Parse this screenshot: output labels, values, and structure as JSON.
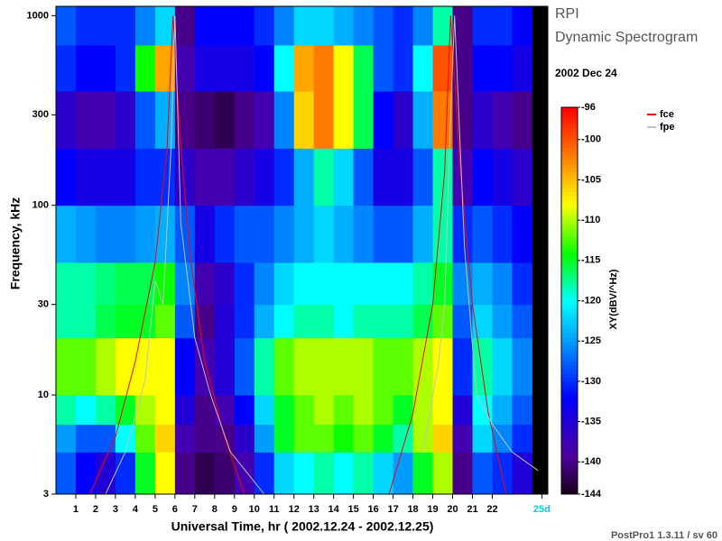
{
  "title": "RPI",
  "subtitle": "Dynamic Spectrogram",
  "date": "2002 Dec 24",
  "footer": "PostPro1 1.3.11 / sv 60",
  "chart_data": {
    "type": "heatmap",
    "xlabel": "Universal Time, hr ( 2002.12.24 - 2002.12.25)",
    "ylabel": "Frequency, kHz",
    "xlim": [
      0,
      24.8
    ],
    "xticks": [
      1,
      2,
      3,
      4,
      5,
      6,
      7,
      8,
      9,
      10,
      11,
      12,
      13,
      14,
      15,
      16,
      17,
      18,
      19,
      20,
      21,
      22,
      {
        "value": 24.5,
        "label": "25d"
      }
    ],
    "ylim": [
      3,
      1120
    ],
    "yticks": [
      3,
      10,
      30,
      100,
      300,
      1000
    ],
    "log_y": true,
    "x_bins": [
      0,
      1,
      2,
      3,
      4,
      5,
      6,
      7,
      8,
      9,
      10,
      11,
      12,
      13,
      14,
      15,
      16,
      17,
      18,
      19,
      20,
      21,
      22,
      23,
      24
    ],
    "y_bins": [
      3,
      5,
      7,
      10,
      20,
      30,
      50,
      100,
      200,
      400,
      700,
      1120
    ],
    "z": [
      [
        -128,
        -132,
        -135,
        -130,
        -115,
        -108,
        -140,
        -142,
        -141,
        -138,
        -130,
        -122,
        -120,
        -118,
        -120,
        -118,
        -122,
        -125,
        -115,
        -110,
        -140,
        -128,
        -130,
        -135
      ],
      [
        -125,
        -128,
        -128,
        -120,
        -112,
        -106,
        -138,
        -140,
        -140,
        -136,
        -125,
        -115,
        -112,
        -112,
        -114,
        -112,
        -115,
        -118,
        -110,
        -106,
        -138,
        -122,
        -126,
        -130
      ],
      [
        -118,
        -120,
        -118,
        -115,
        -110,
        -108,
        -135,
        -140,
        -138,
        -132,
        -122,
        -115,
        -112,
        -110,
        -112,
        -110,
        -112,
        -115,
        -110,
        -108,
        -135,
        -120,
        -124,
        -128
      ],
      [
        -112,
        -112,
        -110,
        -108,
        -108,
        -108,
        -132,
        -138,
        -135,
        -128,
        -118,
        -112,
        -110,
        -110,
        -110,
        -110,
        -112,
        -112,
        -110,
        -108,
        -130,
        -118,
        -122,
        -126
      ],
      [
        -118,
        -118,
        -116,
        -115,
        -115,
        -112,
        -128,
        -140,
        -135,
        -130,
        -124,
        -120,
        -118,
        -118,
        -120,
        -118,
        -118,
        -118,
        -116,
        -112,
        -128,
        -122,
        -125,
        -128
      ],
      [
        -118,
        -118,
        -117,
        -116,
        -116,
        -114,
        -126,
        -138,
        -136,
        -130,
        -126,
        -122,
        -120,
        -120,
        -120,
        -120,
        -120,
        -120,
        -118,
        -115,
        -126,
        -124,
        -126,
        -130
      ],
      [
        -124,
        -125,
        -126,
        -126,
        -125,
        -124,
        -128,
        -134,
        -130,
        -128,
        -128,
        -126,
        -124,
        -122,
        -124,
        -126,
        -128,
        -128,
        -124,
        -118,
        -130,
        -128,
        -130,
        -132
      ],
      [
        -132,
        -134,
        -134,
        -134,
        -130,
        -130,
        -136,
        -138,
        -138,
        -136,
        -134,
        -130,
        -124,
        -118,
        -122,
        -128,
        -134,
        -134,
        -128,
        -118,
        -138,
        -132,
        -134,
        -136
      ],
      [
        -136,
        -138,
        -138,
        -136,
        -128,
        -124,
        -140,
        -141,
        -142,
        -140,
        -138,
        -126,
        -106,
        -102,
        -108,
        -116,
        -132,
        -136,
        -124,
        -102,
        -140,
        -136,
        -138,
        -140
      ],
      [
        -130,
        -132,
        -132,
        -130,
        -114,
        -104,
        -138,
        -134,
        -134,
        -134,
        -132,
        -120,
        -104,
        -102,
        -108,
        -116,
        -128,
        -130,
        -120,
        -100,
        -140,
        -132,
        -132,
        -134
      ],
      [
        -128,
        -130,
        -130,
        -130,
        -126,
        -122,
        -140,
        -132,
        -132,
        -132,
        -130,
        -126,
        -122,
        -122,
        -124,
        -126,
        -128,
        -130,
        -126,
        -118,
        -140,
        -130,
        -130,
        -132
      ]
    ],
    "colorbar_label": "XY(dBV/^Hz)",
    "colorlim": [
      -144,
      -96
    ],
    "colorticks": [
      -96,
      -100,
      -105,
      -110,
      -115,
      -120,
      -125,
      -130,
      -135,
      -140,
      -144
    ],
    "series": [
      {
        "name": "fce",
        "color": "#ff0000",
        "x": [
          1.7,
          3,
          4,
          5,
          5.6,
          5.9,
          6.3,
          6.8,
          7.5,
          8.5,
          9.5,
          null,
          16.8,
          18,
          19,
          19.6,
          19.9,
          20.4,
          21,
          21.8,
          22.7
        ],
        "values": [
          3,
          6,
          15,
          50,
          200,
          1000,
          200,
          50,
          15,
          6,
          3,
          null,
          3,
          8,
          30,
          150,
          1000,
          150,
          30,
          8,
          3
        ]
      },
      {
        "name": "fpe",
        "color": "#c0c0c0",
        "x": [
          2.5,
          3.5,
          4.5,
          5,
          5.4,
          5.8,
          6,
          6.3,
          6.8,
          7,
          7.8,
          8.8,
          10.5,
          null,
          18.5,
          19.3,
          19.6,
          19.9,
          20.1,
          20.6,
          21.2,
          22,
          23,
          24.3
        ],
        "values": [
          3,
          5,
          12,
          40,
          30,
          200,
          1000,
          80,
          30,
          20,
          10,
          5,
          3,
          null,
          5,
          15,
          30,
          300,
          1000,
          60,
          10,
          7,
          5,
          4
        ]
      }
    ]
  }
}
